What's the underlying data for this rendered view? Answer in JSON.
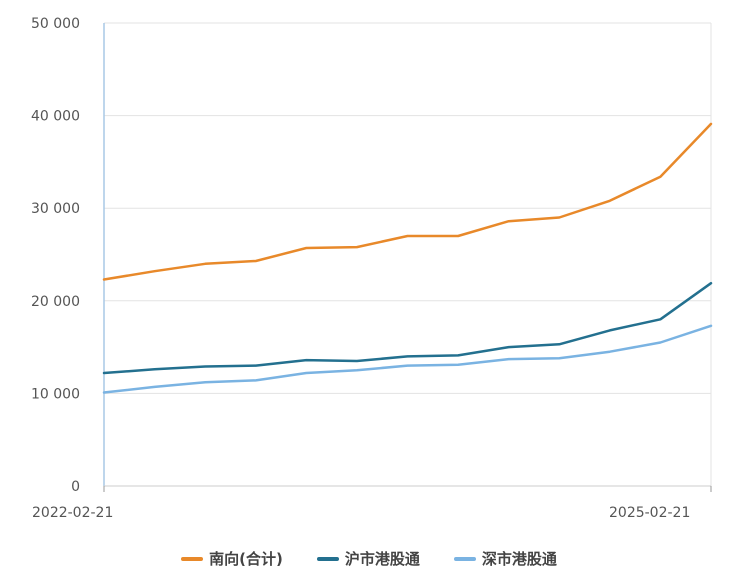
{
  "chart_data": {
    "type": "line",
    "x": [
      "2022-02-21",
      "2022-05-21",
      "2022-08-21",
      "2022-11-21",
      "2023-02-21",
      "2023-05-21",
      "2023-08-21",
      "2023-11-21",
      "2024-02-21",
      "2024-05-21",
      "2024-08-21",
      "2024-11-21",
      "2025-02-21"
    ],
    "x_tick_labels": [
      "2022-02-21",
      "2025-02-21"
    ],
    "ylim": [
      0,
      50000
    ],
    "y_tick_labels": [
      "0",
      "10 000",
      "20 000",
      "30 000",
      "40 000",
      "50 000"
    ],
    "grid": "horizontal",
    "legend_position": "bottom",
    "series": [
      {
        "name": "南向(合计)",
        "color": "#E8892A",
        "values": [
          22300,
          23200,
          24000,
          24300,
          25700,
          25800,
          27000,
          27000,
          28600,
          29000,
          30800,
          33400,
          39100
        ]
      },
      {
        "name": "沪市港股通",
        "color": "#23708F",
        "values": [
          12200,
          12600,
          12900,
          13000,
          13600,
          13500,
          14000,
          14100,
          15000,
          15300,
          16800,
          18000,
          21900
        ]
      },
      {
        "name": "深市港股通",
        "color": "#7AB3E2",
        "values": [
          10100,
          10700,
          11200,
          11400,
          12200,
          12500,
          13000,
          13100,
          13700,
          13800,
          14500,
          15500,
          17300
        ]
      }
    ]
  }
}
